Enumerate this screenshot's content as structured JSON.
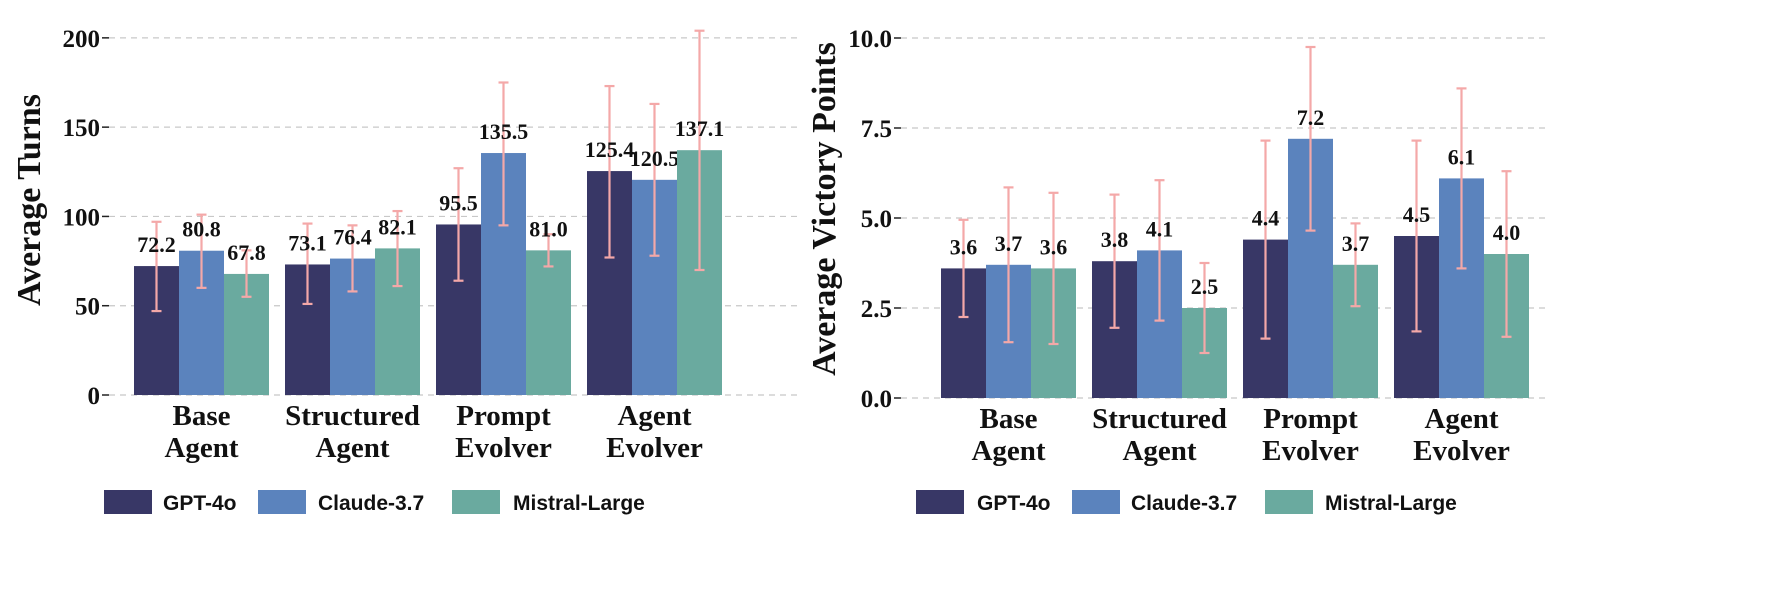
{
  "legend": {
    "items": [
      {
        "label": "GPT-4o",
        "color": "#383766"
      },
      {
        "label": "Claude-3.7",
        "color": "#5b83bd"
      },
      {
        "label": "Mistral-Large",
        "color": "#6aaa9f"
      }
    ]
  },
  "error_color": "#f4a8a8",
  "chart_data": [
    {
      "type": "bar",
      "title": "",
      "xlabel": "",
      "ylabel": "Average Turns",
      "ylim": [
        0,
        210
      ],
      "yticks": [
        0,
        50,
        100,
        150,
        200
      ],
      "ytick_labels": [
        "0",
        "50",
        "100",
        "150",
        "200"
      ],
      "categories": [
        [
          "Base",
          "Agent"
        ],
        [
          "Structured",
          "Agent"
        ],
        [
          "Prompt",
          "Evolver"
        ],
        [
          "Agent",
          "Evolver"
        ]
      ],
      "series": [
        {
          "name": "GPT-4o",
          "values": [
            72.2,
            73.1,
            95.5,
            125.4
          ],
          "err_low": [
            47,
            51,
            64,
            77
          ],
          "err_high": [
            97,
            96,
            127,
            173
          ],
          "labels": [
            "72.2",
            "73.1",
            "95.5",
            "125.4"
          ]
        },
        {
          "name": "Claude-3.7",
          "values": [
            80.8,
            76.4,
            135.5,
            120.5
          ],
          "err_low": [
            60,
            58,
            95,
            78
          ],
          "err_high": [
            101,
            95,
            175,
            163
          ],
          "labels": [
            "80.8",
            "76.4",
            "135.5",
            "120.5"
          ]
        },
        {
          "name": "Mistral-Large",
          "values": [
            67.8,
            82.1,
            81.0,
            137.1
          ],
          "err_low": [
            55,
            61,
            72,
            70
          ],
          "err_high": [
            81,
            103,
            90,
            204
          ],
          "labels": [
            "67.8",
            "82.1",
            "81.0",
            "137.1"
          ]
        }
      ]
    },
    {
      "type": "bar",
      "title": "",
      "xlabel": "",
      "ylabel": "Average Victory Points",
      "ylim": [
        0,
        10.5
      ],
      "yticks": [
        0,
        2.5,
        5,
        7.5,
        10
      ],
      "ytick_labels": [
        "0.0",
        "2.5",
        "5.0",
        "7.5",
        "10.0"
      ],
      "categories": [
        [
          "Base",
          "Agent"
        ],
        [
          "Structured",
          "Agent"
        ],
        [
          "Prompt",
          "Evolver"
        ],
        [
          "Agent",
          "Evolver"
        ]
      ],
      "series": [
        {
          "name": "GPT-4o",
          "values": [
            3.6,
            3.8,
            4.4,
            4.5
          ],
          "err_low": [
            2.25,
            1.95,
            1.65,
            1.85
          ],
          "err_high": [
            4.95,
            5.65,
            7.15,
            7.15
          ],
          "labels": [
            "3.6",
            "3.8",
            "4.4",
            "4.5"
          ]
        },
        {
          "name": "Claude-3.7",
          "values": [
            3.7,
            4.1,
            7.2,
            6.1
          ],
          "err_low": [
            1.55,
            2.15,
            4.65,
            3.6
          ],
          "err_high": [
            5.85,
            6.05,
            9.75,
            8.6
          ],
          "labels": [
            "3.7",
            "4.1",
            "7.2",
            "6.1"
          ]
        },
        {
          "name": "Mistral-Large",
          "values": [
            3.6,
            2.5,
            3.7,
            4.0
          ],
          "err_low": [
            1.5,
            1.25,
            2.55,
            1.7
          ],
          "err_high": [
            5.7,
            3.75,
            4.85,
            6.3
          ],
          "labels": [
            "3.6",
            "2.5",
            "3.7",
            "4.0"
          ]
        }
      ]
    }
  ]
}
